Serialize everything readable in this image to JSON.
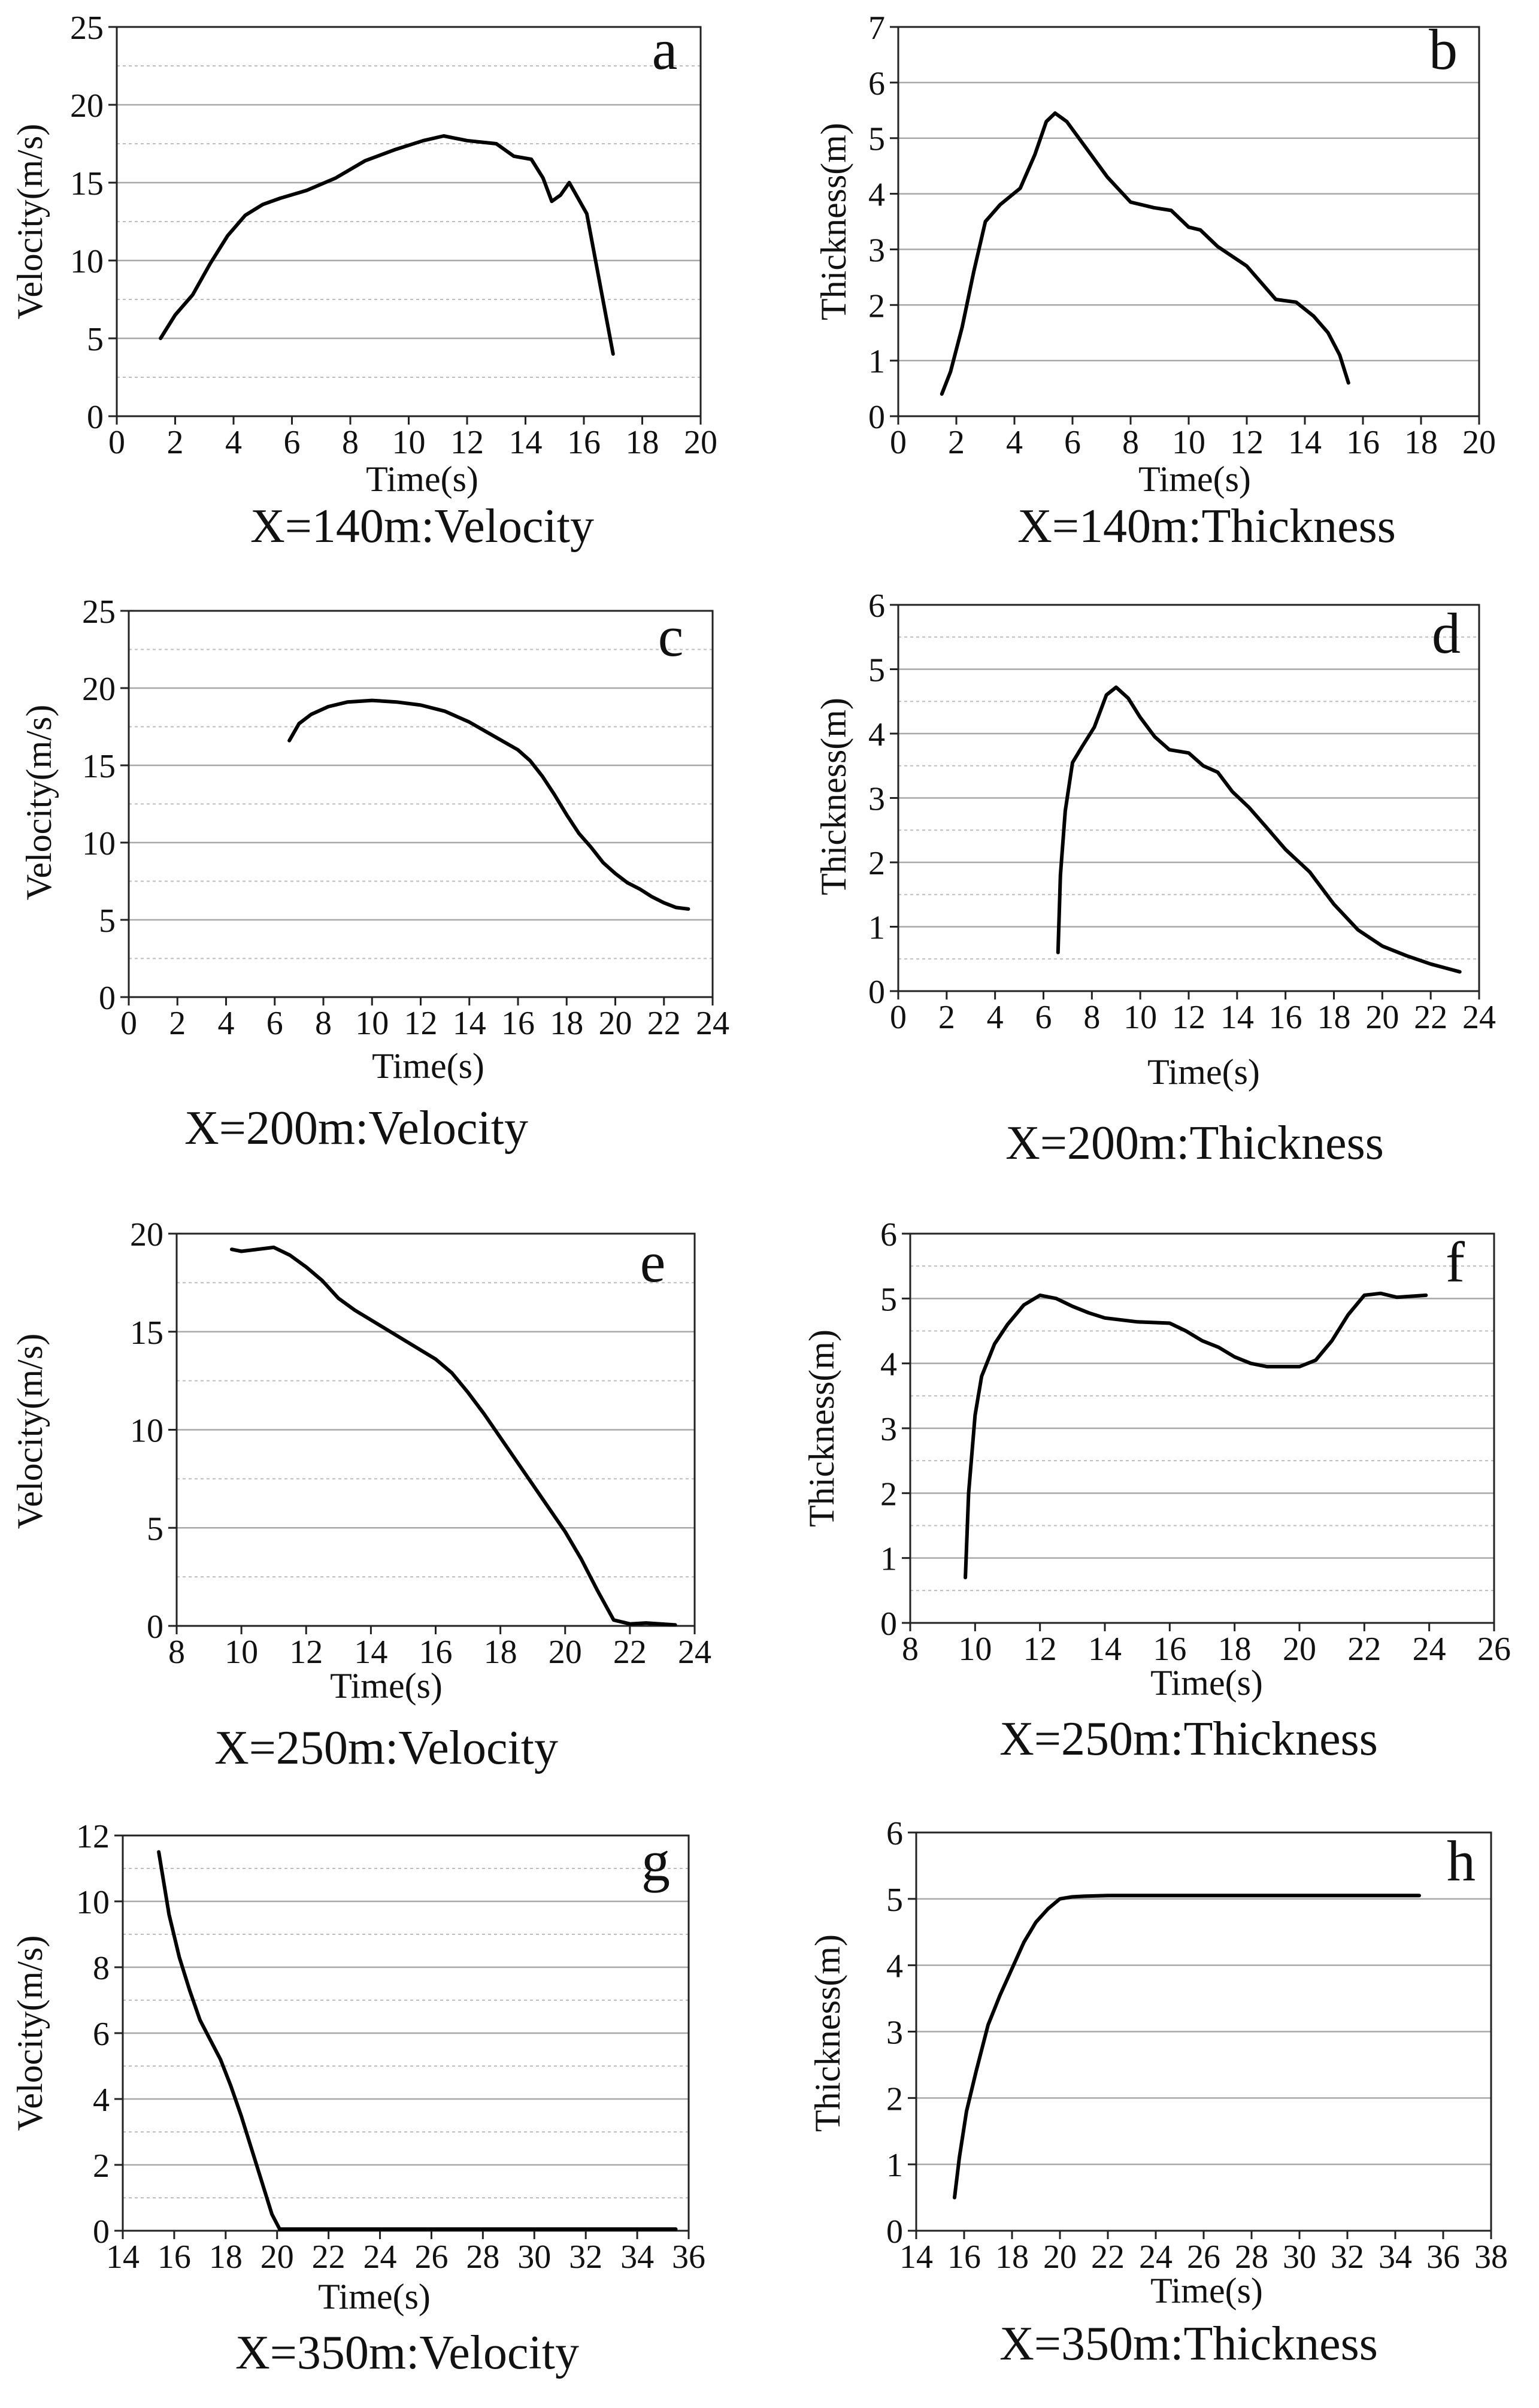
{
  "figure": {
    "panels": [
      {
        "id": "a",
        "caption": "X=140m:Velocity"
      },
      {
        "id": "b",
        "caption": "X=140m:Thickness"
      },
      {
        "id": "c",
        "caption": "X=200m:Velocity"
      },
      {
        "id": "d",
        "caption": "X=200m:Thickness"
      },
      {
        "id": "e",
        "caption": "X=250m:Velocity"
      },
      {
        "id": "f",
        "caption": "X=250m:Thickness"
      },
      {
        "id": "g",
        "caption": "X=350m:Velocity"
      },
      {
        "id": "h",
        "caption": "X=350m:Thickness"
      }
    ]
  },
  "chart_data": [
    {
      "panel": "a",
      "type": "line",
      "title": "X=140m:Velocity",
      "xlabel": "Time(s)",
      "ylabel": "Velocity(m/s)",
      "xlim": [
        0,
        20
      ],
      "ylim": [
        0,
        25
      ],
      "xticks": [
        0,
        2,
        4,
        6,
        8,
        10,
        12,
        14,
        16,
        18,
        20
      ],
      "yticks": [
        0,
        5,
        10,
        15,
        20,
        25
      ],
      "minor_y_gridlines": true,
      "series": [
        {
          "name": "Velocity",
          "x": [
            1.5,
            2,
            2.6,
            3.2,
            3.8,
            4.4,
            5,
            5.6,
            6.5,
            7.5,
            8.5,
            9.5,
            10.5,
            11.2,
            12,
            13,
            13.6,
            14.2,
            14.6,
            14.9,
            15.2,
            15.5,
            15.8,
            16.1,
            16.5,
            17
          ],
          "y": [
            5,
            6.5,
            7.8,
            9.8,
            11.6,
            12.9,
            13.6,
            14,
            14.5,
            15.3,
            16.4,
            17.1,
            17.7,
            18,
            17.7,
            17.5,
            16.7,
            16.5,
            15.3,
            13.8,
            14.2,
            15,
            14,
            13,
            9,
            4
          ]
        }
      ]
    },
    {
      "panel": "b",
      "type": "line",
      "title": "X=140m:Thickness",
      "xlabel": "Time(s)",
      "ylabel": "Thickness(m)",
      "xlim": [
        0,
        20
      ],
      "ylim": [
        0,
        7
      ],
      "xticks": [
        0,
        2,
        4,
        6,
        8,
        10,
        12,
        14,
        16,
        18,
        20
      ],
      "yticks": [
        0,
        1,
        2,
        3,
        4,
        5,
        6,
        7
      ],
      "minor_y_gridlines": false,
      "series": [
        {
          "name": "Thickness",
          "x": [
            1.5,
            1.8,
            2.2,
            2.6,
            3,
            3.5,
            4.2,
            4.7,
            5.1,
            5.4,
            5.8,
            6.5,
            7.2,
            8,
            8.8,
            9.4,
            10,
            10.4,
            11,
            12,
            13,
            13.7,
            14.3,
            14.8,
            15.2,
            15.5
          ],
          "y": [
            0.4,
            0.8,
            1.6,
            2.6,
            3.5,
            3.8,
            4.1,
            4.7,
            5.3,
            5.45,
            5.3,
            4.8,
            4.3,
            3.85,
            3.75,
            3.7,
            3.4,
            3.35,
            3.05,
            2.7,
            2.1,
            2.05,
            1.8,
            1.5,
            1.1,
            0.6
          ]
        }
      ]
    },
    {
      "panel": "c",
      "type": "line",
      "title": "X=200m:Velocity",
      "xlabel": "Time(s)",
      "ylabel": "Velocity(m/s)",
      "xlim": [
        0,
        24
      ],
      "ylim": [
        0,
        25
      ],
      "xticks": [
        0,
        2,
        4,
        6,
        8,
        10,
        12,
        14,
        16,
        18,
        20,
        22,
        24
      ],
      "yticks": [
        0,
        5,
        10,
        15,
        20,
        25
      ],
      "minor_y_gridlines": true,
      "series": [
        {
          "name": "Velocity",
          "x": [
            6.6,
            7,
            7.5,
            8.2,
            9,
            10,
            11,
            12,
            13,
            14,
            15,
            16,
            16.5,
            17,
            17.5,
            18,
            18.5,
            19,
            19.5,
            20,
            20.5,
            21,
            21.5,
            22,
            22.5,
            23
          ],
          "y": [
            16.6,
            17.7,
            18.3,
            18.8,
            19.1,
            19.2,
            19.1,
            18.9,
            18.5,
            17.8,
            16.9,
            16,
            15.3,
            14.3,
            13.1,
            11.8,
            10.6,
            9.7,
            8.7,
            8,
            7.4,
            7,
            6.5,
            6.1,
            5.8,
            5.7
          ]
        }
      ]
    },
    {
      "panel": "d",
      "type": "line",
      "title": "X=200m:Thickness",
      "xlabel": "Time(s)",
      "ylabel": "Thickness(m)",
      "xlim": [
        0,
        24
      ],
      "ylim": [
        0,
        6
      ],
      "xticks": [
        0,
        2,
        4,
        6,
        8,
        10,
        12,
        14,
        16,
        18,
        20,
        22,
        24
      ],
      "yticks": [
        0,
        1,
        2,
        3,
        4,
        5,
        6
      ],
      "minor_y_gridlines": true,
      "series": [
        {
          "name": "Thickness",
          "x": [
            6.6,
            6.7,
            6.9,
            7.2,
            7.6,
            8.1,
            8.6,
            9,
            9.5,
            10,
            10.6,
            11.2,
            12,
            12.6,
            13.2,
            13.8,
            14.5,
            15.2,
            16,
            17,
            18,
            19,
            20,
            21,
            22,
            23.2
          ],
          "y": [
            0.6,
            1.8,
            2.8,
            3.55,
            3.8,
            4.1,
            4.6,
            4.72,
            4.55,
            4.25,
            3.95,
            3.75,
            3.7,
            3.5,
            3.4,
            3.1,
            2.85,
            2.55,
            2.2,
            1.85,
            1.35,
            0.95,
            0.7,
            0.55,
            0.42,
            0.3
          ]
        }
      ]
    },
    {
      "panel": "e",
      "type": "line",
      "title": "X=250m:Velocity",
      "xlabel": "Time(s)",
      "ylabel": "Velocity(m/s)",
      "xlim": [
        8,
        24
      ],
      "ylim": [
        0,
        20
      ],
      "xticks": [
        8,
        10,
        12,
        14,
        16,
        18,
        20,
        22,
        24
      ],
      "yticks": [
        0,
        5,
        10,
        15,
        20
      ],
      "minor_y_gridlines": true,
      "series": [
        {
          "name": "Velocity",
          "x": [
            9.7,
            10,
            10.5,
            11,
            11.5,
            12,
            12.5,
            13,
            13.5,
            14,
            15,
            16,
            16.5,
            17,
            17.5,
            18,
            18.5,
            19,
            19.5,
            20,
            20.5,
            21,
            21.5,
            22,
            22.5,
            23.4
          ],
          "y": [
            19.2,
            19.1,
            19.2,
            19.3,
            18.9,
            18.3,
            17.6,
            16.7,
            16.1,
            15.6,
            14.6,
            13.6,
            12.9,
            11.9,
            10.8,
            9.6,
            8.4,
            7.2,
            6,
            4.8,
            3.4,
            1.8,
            0.3,
            0.1,
            0.15,
            0.05
          ]
        }
      ]
    },
    {
      "panel": "f",
      "type": "line",
      "title": "X=250m:Thickness",
      "xlabel": "Time(s)",
      "ylabel": "Thickness(m)",
      "xlim": [
        8,
        26
      ],
      "ylim": [
        0,
        6
      ],
      "xticks": [
        8,
        10,
        12,
        14,
        16,
        18,
        20,
        22,
        24,
        26
      ],
      "yticks": [
        0,
        1,
        2,
        3,
        4,
        5,
        6
      ],
      "minor_y_gridlines": true,
      "series": [
        {
          "name": "Thickness",
          "x": [
            9.7,
            9.8,
            10,
            10.2,
            10.6,
            11,
            11.5,
            12,
            12.5,
            13,
            13.5,
            14,
            15,
            16,
            16.5,
            17,
            17.5,
            18,
            18.5,
            19,
            20,
            20.5,
            21,
            21.5,
            22,
            22.5,
            23,
            23.9
          ],
          "y": [
            0.7,
            2,
            3.2,
            3.8,
            4.3,
            4.6,
            4.9,
            5.05,
            5,
            4.88,
            4.78,
            4.7,
            4.64,
            4.62,
            4.5,
            4.35,
            4.25,
            4.1,
            4,
            3.95,
            3.95,
            4.05,
            4.35,
            4.75,
            5.05,
            5.08,
            5.02,
            5.05
          ]
        }
      ]
    },
    {
      "panel": "g",
      "type": "line",
      "title": "X=350m:Velocity",
      "xlabel": "Time(s)",
      "ylabel": "Velocity(m/s)",
      "xlim": [
        14,
        36
      ],
      "ylim": [
        0,
        12
      ],
      "xticks": [
        14,
        16,
        18,
        20,
        22,
        24,
        26,
        28,
        30,
        32,
        34,
        36
      ],
      "yticks": [
        0,
        2,
        4,
        6,
        8,
        10,
        12
      ],
      "minor_y_gridlines": true,
      "series": [
        {
          "name": "Velocity",
          "x": [
            15.4,
            15.8,
            16.2,
            16.6,
            17,
            17.4,
            17.8,
            18.2,
            18.6,
            19,
            19.4,
            19.8,
            20.1,
            20.5,
            22,
            25,
            30,
            35.5
          ],
          "y": [
            11.5,
            9.6,
            8.3,
            7.3,
            6.4,
            5.8,
            5.2,
            4.4,
            3.5,
            2.5,
            1.5,
            0.5,
            0.05,
            0.05,
            0.05,
            0.05,
            0.05,
            0.05
          ]
        }
      ]
    },
    {
      "panel": "h",
      "type": "line",
      "title": "X=350m:Thickness",
      "xlabel": "Time(s)",
      "ylabel": "Thickness(m)",
      "xlim": [
        14,
        38
      ],
      "ylim": [
        0,
        6
      ],
      "xticks": [
        14,
        16,
        18,
        20,
        22,
        24,
        26,
        28,
        30,
        32,
        34,
        36,
        38
      ],
      "yticks": [
        0,
        1,
        2,
        3,
        4,
        5,
        6
      ],
      "minor_y_gridlines": false,
      "series": [
        {
          "name": "Thickness",
          "x": [
            15.6,
            15.8,
            16.1,
            16.5,
            17,
            17.5,
            18,
            18.5,
            19,
            19.5,
            20,
            20.5,
            21,
            22,
            25,
            30,
            35
          ],
          "y": [
            0.5,
            1.1,
            1.8,
            2.4,
            3.1,
            3.55,
            3.95,
            4.35,
            4.65,
            4.85,
            5,
            5.03,
            5.04,
            5.05,
            5.05,
            5.05,
            5.05
          ]
        }
      ]
    }
  ]
}
